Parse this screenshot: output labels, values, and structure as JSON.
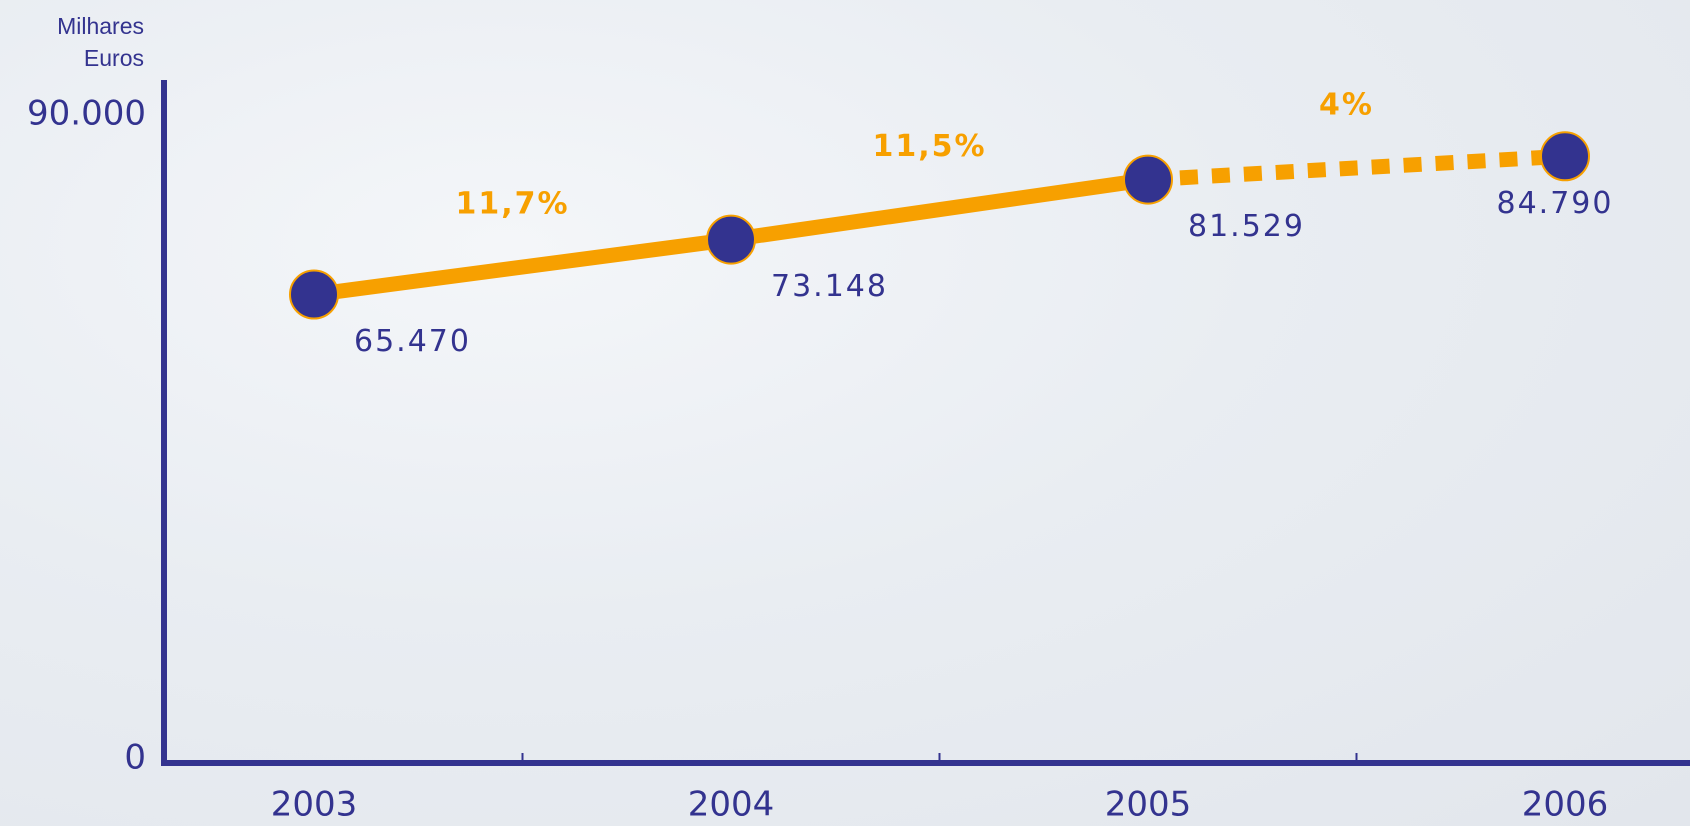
{
  "chart_data": {
    "type": "line",
    "ylabel": "Milhares Euros",
    "categories": [
      "2003",
      "2004",
      "2005",
      "2006"
    ],
    "series": [
      {
        "name": "Milhares Euros",
        "color": "#f7a000",
        "marker_color": "#33338f",
        "values": [
          65470,
          73148,
          81529,
          84790
        ],
        "value_labels": [
          "65.470",
          "73.148",
          "81.529",
          "84.790"
        ]
      }
    ],
    "dashed_last_segment": true,
    "annotations": [
      "11,7%",
      "11,5%",
      "4%"
    ],
    "ylim": [
      0,
      90000
    ],
    "yticks": [
      0,
      {
        "value": 90000,
        "label": "90.000"
      }
    ],
    "grid": false,
    "axis_color": "#33338f"
  }
}
